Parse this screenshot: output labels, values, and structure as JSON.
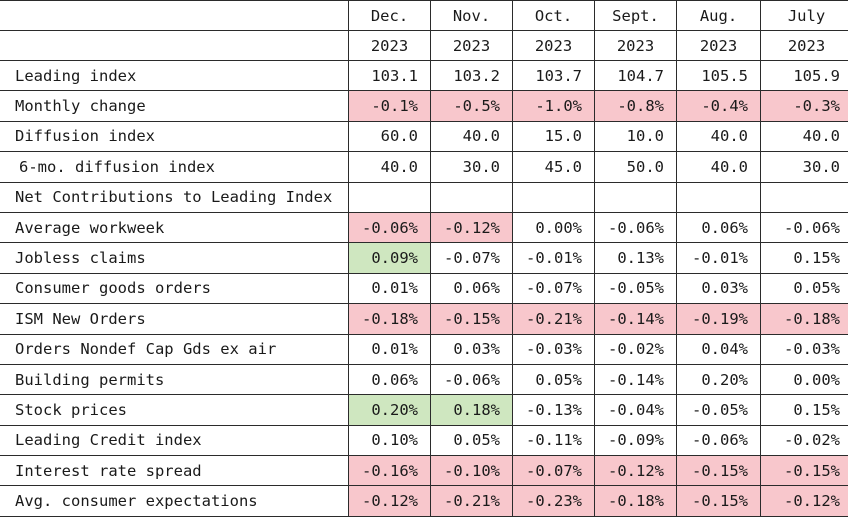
{
  "columns": [
    {
      "month": "Dec.",
      "year": "2023"
    },
    {
      "month": "Nov.",
      "year": "2023"
    },
    {
      "month": "Oct.",
      "year": "2023"
    },
    {
      "month": "Sept.",
      "year": "2023"
    },
    {
      "month": "Aug.",
      "year": "2023"
    },
    {
      "month": "July",
      "year": "2023"
    }
  ],
  "rows": [
    {
      "label": "Leading index",
      "values": [
        "103.1",
        "103.2",
        "103.7",
        "104.7",
        "105.5",
        "105.9"
      ],
      "hl": [
        "",
        "",
        "",
        "",
        "",
        ""
      ]
    },
    {
      "label": "Monthly change",
      "values": [
        "-0.1%",
        "-0.5%",
        "-1.0%",
        "-0.8%",
        "-0.4%",
        "-0.3%"
      ],
      "hl": [
        "red",
        "red",
        "red",
        "red",
        "red",
        "red"
      ]
    },
    {
      "label": "Diffusion index",
      "values": [
        "60.0",
        "40.0",
        "15.0",
        "10.0",
        "40.0",
        "40.0"
      ],
      "hl": [
        "",
        "",
        "",
        "",
        "",
        ""
      ]
    },
    {
      "label": "6-mo. diffusion index",
      "values": [
        "40.0",
        "30.0",
        "45.0",
        "50.0",
        "40.0",
        "30.0"
      ],
      "hl": [
        "",
        "",
        "",
        "",
        "",
        ""
      ],
      "indent": true
    },
    {
      "label": "Net Contributions to Leading Index",
      "section": true
    },
    {
      "label": "Average workweek",
      "values": [
        "-0.06%",
        "-0.12%",
        "0.00%",
        "-0.06%",
        "0.06%",
        "-0.06%"
      ],
      "hl": [
        "red",
        "red",
        "",
        "",
        "",
        ""
      ]
    },
    {
      "label": "Jobless claims",
      "values": [
        "0.09%",
        "-0.07%",
        "-0.01%",
        "0.13%",
        "-0.01%",
        "0.15%"
      ],
      "hl": [
        "green",
        "",
        "",
        "",
        "",
        ""
      ]
    },
    {
      "label": "Consumer goods orders",
      "values": [
        "0.01%",
        "0.06%",
        "-0.07%",
        "-0.05%",
        "0.03%",
        "0.05%"
      ],
      "hl": [
        "",
        "",
        "",
        "",
        "",
        ""
      ]
    },
    {
      "label": "ISM New Orders",
      "values": [
        "-0.18%",
        "-0.15%",
        "-0.21%",
        "-0.14%",
        "-0.19%",
        "-0.18%"
      ],
      "hl": [
        "red",
        "red",
        "red",
        "red",
        "red",
        "red"
      ]
    },
    {
      "label": "Orders Nondef Cap Gds ex air",
      "values": [
        "0.01%",
        "0.03%",
        "-0.03%",
        "-0.02%",
        "0.04%",
        "-0.03%"
      ],
      "hl": [
        "",
        "",
        "",
        "",
        "",
        ""
      ]
    },
    {
      "label": "Building permits",
      "values": [
        "0.06%",
        "-0.06%",
        "0.05%",
        "-0.14%",
        "0.20%",
        "0.00%"
      ],
      "hl": [
        "",
        "",
        "",
        "",
        "",
        ""
      ]
    },
    {
      "label": "Stock prices",
      "values": [
        "0.20%",
        "0.18%",
        "-0.13%",
        "-0.04%",
        "-0.05%",
        "0.15%"
      ],
      "hl": [
        "green",
        "green",
        "",
        "",
        "",
        ""
      ]
    },
    {
      "label": "Leading Credit index",
      "values": [
        "0.10%",
        "0.05%",
        "-0.11%",
        "-0.09%",
        "-0.06%",
        "-0.02%"
      ],
      "hl": [
        "",
        "",
        "",
        "",
        "",
        ""
      ]
    },
    {
      "label": "Interest rate spread",
      "values": [
        "-0.16%",
        "-0.10%",
        "-0.07%",
        "-0.12%",
        "-0.15%",
        "-0.15%"
      ],
      "hl": [
        "red",
        "red",
        "red",
        "red",
        "red",
        "red"
      ]
    },
    {
      "label": "Avg. consumer expectations",
      "values": [
        "-0.12%",
        "-0.21%",
        "-0.23%",
        "-0.18%",
        "-0.15%",
        "-0.12%"
      ],
      "hl": [
        "red",
        "red",
        "red",
        "red",
        "red",
        "red"
      ]
    }
  ],
  "colors": {
    "negative_highlight": "#f8c7cc",
    "positive_highlight": "#cfe7c0",
    "border": "#2b2b2b"
  }
}
